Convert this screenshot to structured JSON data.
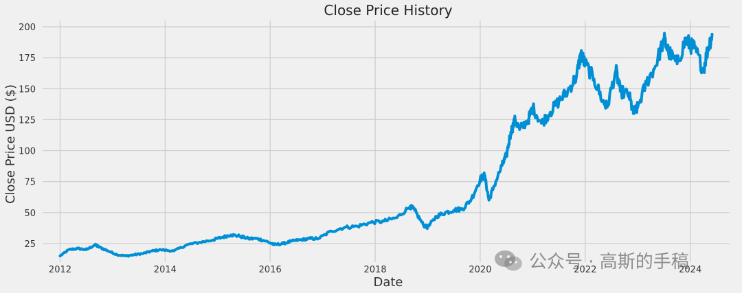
{
  "chart_data": {
    "type": "line",
    "title": "Close Price History",
    "xlabel": "Date",
    "ylabel": "Close Price USD ($)",
    "xlim": [
      "2011-09",
      "2024-10"
    ],
    "ylim": [
      10,
      205
    ],
    "x_ticks": [
      "2012",
      "2014",
      "2016",
      "2018",
      "2020",
      "2022",
      "2024"
    ],
    "y_ticks": [
      25,
      50,
      75,
      100,
      125,
      150,
      175,
      200
    ],
    "grid": true,
    "line_color": "#008fd5",
    "series": [
      {
        "x": [
          "2012-01",
          "2012-03",
          "2012-05",
          "2012-07",
          "2012-09",
          "2012-10",
          "2012-12",
          "2013-02",
          "2013-04",
          "2013-06",
          "2013-08",
          "2013-10",
          "2013-12",
          "2014-03",
          "2014-06",
          "2014-09",
          "2014-12",
          "2015-02",
          "2015-04",
          "2015-06",
          "2015-08",
          "2015-10",
          "2015-12",
          "2016-02",
          "2016-04",
          "2016-06",
          "2016-08",
          "2016-10",
          "2016-12",
          "2017-03",
          "2017-06",
          "2017-09",
          "2017-12",
          "2018-03",
          "2018-06",
          "2018-09",
          "2018-10",
          "2018-12",
          "2019-01",
          "2019-03",
          "2019-05",
          "2019-07",
          "2019-09",
          "2019-11",
          "2020-01",
          "2020-02",
          "2020-03",
          "2020-04",
          "2020-06",
          "2020-07",
          "2020-08",
          "2020-09",
          "2020-10",
          "2020-12",
          "2021-01",
          "2021-03",
          "2021-05",
          "2021-07",
          "2021-09",
          "2021-11",
          "2021-12",
          "2022-01",
          "2022-03",
          "2022-05",
          "2022-06",
          "2022-08",
          "2022-09",
          "2022-11",
          "2022-12",
          "2023-01",
          "2023-03",
          "2023-05",
          "2023-07",
          "2023-08",
          "2023-10",
          "2023-12",
          "2024-01",
          "2024-02",
          "2024-04",
          "2024-05",
          "2024-06"
        ],
        "y": [
          15,
          20,
          21,
          20,
          24,
          22,
          19,
          16,
          15,
          16,
          17,
          19,
          20,
          19,
          24,
          26,
          28,
          30,
          32,
          31,
          29,
          29,
          27,
          24,
          25,
          27,
          28,
          29,
          29,
          35,
          38,
          39,
          42,
          43,
          46,
          55,
          52,
          40,
          38,
          47,
          50,
          52,
          53,
          61,
          77,
          80,
          60,
          70,
          88,
          96,
          115,
          125,
          117,
          125,
          135,
          122,
          131,
          140,
          148,
          160,
          178,
          170,
          158,
          140,
          135,
          165,
          148,
          145,
          130,
          135,
          155,
          168,
          190,
          180,
          170,
          190,
          185,
          183,
          165,
          182,
          194
        ]
      }
    ],
    "watermark": "公众号 · 高斯的手稿"
  }
}
